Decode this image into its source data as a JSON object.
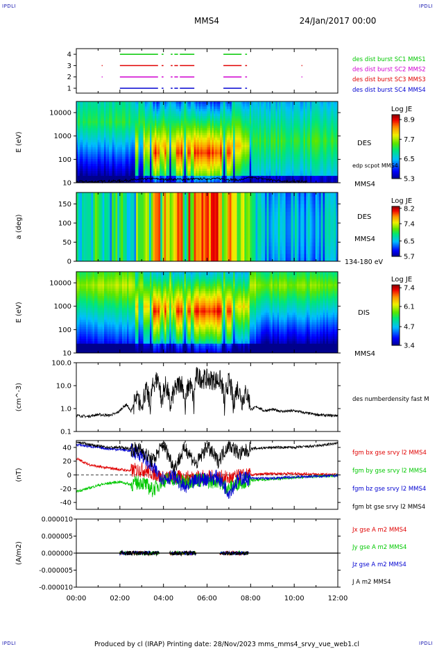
{
  "header": {
    "corner_tl": "IPDLI",
    "corner_tr": "IPDLI",
    "corner_bl": "IPDLI",
    "corner_br": "IPDLI",
    "mission": "MMS4",
    "date": "24/Jan/2017 00:00"
  },
  "footer": {
    "text": "Produced by cl (IRAP)   Printing date: 28/Nov/2023   mms_mms4_srvy_vue_web1.cl"
  },
  "colors": {
    "green": "#00c800",
    "magenta": "#d000d0",
    "red": "#e00000",
    "blue": "#0000d0",
    "black": "#000000"
  },
  "chart_data": [
    {
      "type": "scatter",
      "id": "availability",
      "x_range": [
        "00:00",
        "12:00"
      ],
      "yticks": [
        "1",
        "2",
        "3",
        "4"
      ],
      "series": [
        {
          "name": "des dist burst SC1 MMS1",
          "level": 4,
          "color": "#00c800",
          "intervals": [
            [
              "02:00",
              "03:45"
            ],
            [
              "03:55",
              "04:00"
            ],
            [
              "04:20",
              "04:25"
            ],
            [
              "04:30",
              "04:40"
            ],
            [
              "04:45",
              "05:25"
            ],
            [
              "06:45",
              "07:35"
            ],
            [
              "07:45",
              "07:50"
            ]
          ]
        },
        {
          "name": "des dist burst SC2 MMS2",
          "level": 2,
          "color": "#d000d0",
          "intervals": [
            [
              "01:10",
              "01:12"
            ],
            [
              "02:00",
              "03:45"
            ],
            [
              "03:55",
              "04:00"
            ],
            [
              "04:20",
              "04:25"
            ],
            [
              "04:30",
              "04:40"
            ],
            [
              "04:45",
              "05:25"
            ],
            [
              "06:45",
              "07:35"
            ],
            [
              "07:45",
              "07:50"
            ],
            [
              "10:20",
              "10:22"
            ]
          ]
        },
        {
          "name": "des dist burst SC3 MMS3",
          "level": 3,
          "color": "#e00000",
          "intervals": [
            [
              "01:10",
              "01:12"
            ],
            [
              "02:00",
              "03:45"
            ],
            [
              "03:55",
              "04:00"
            ],
            [
              "04:20",
              "04:25"
            ],
            [
              "04:30",
              "04:40"
            ],
            [
              "04:45",
              "05:25"
            ],
            [
              "06:45",
              "07:35"
            ],
            [
              "07:45",
              "07:50"
            ],
            [
              "10:20",
              "10:22"
            ]
          ]
        },
        {
          "name": "des dist burst SC4 MMS4",
          "level": 1,
          "color": "#0000d0",
          "intervals": [
            [
              "02:00",
              "03:45"
            ],
            [
              "03:55",
              "04:00"
            ],
            [
              "04:20",
              "04:25"
            ],
            [
              "04:30",
              "04:40"
            ],
            [
              "04:45",
              "05:25"
            ],
            [
              "06:45",
              "07:35"
            ],
            [
              "07:45",
              "07:50"
            ]
          ]
        }
      ]
    },
    {
      "type": "heatmap",
      "id": "des_energy",
      "ylabel": "E (eV)",
      "yscale": "log",
      "ylim": [
        10,
        30000
      ],
      "yticks": [
        "10",
        "100",
        "1000",
        "10000"
      ],
      "label": "DES",
      "label2": "MMS4",
      "overlay_label": "edp scpot MMS4",
      "colorbar": {
        "title": "Log JE",
        "ticks": [
          "5.3",
          "6.5",
          "7.7",
          "8.9"
        ],
        "range": [
          5.3,
          9.2
        ]
      },
      "spacecraft_potential_eV": [
        [
          0,
          11
        ],
        [
          1,
          11
        ],
        [
          2,
          12
        ],
        [
          2.5,
          13
        ],
        [
          3,
          14
        ],
        [
          3.5,
          15
        ],
        [
          4,
          14
        ],
        [
          5,
          14
        ],
        [
          6,
          15
        ],
        [
          6.5,
          15
        ],
        [
          7,
          14
        ],
        [
          7.5,
          13
        ],
        [
          8,
          17
        ],
        [
          8.5,
          15
        ],
        [
          9,
          13
        ],
        [
          9.5,
          12
        ],
        [
          10,
          11
        ],
        [
          10.5,
          11
        ]
      ]
    },
    {
      "type": "heatmap",
      "id": "des_pitch",
      "ylabel": "a (deg)",
      "ylim": [
        0,
        180
      ],
      "yticks": [
        "0",
        "50",
        "100",
        "150"
      ],
      "label": "DES",
      "label2": "MMS4",
      "energy_range": "134-180 eV",
      "colorbar": {
        "title": "Log JE",
        "ticks": [
          "5.7",
          "6.5",
          "7.4",
          "8.2"
        ],
        "range": [
          5.7,
          8.3
        ]
      }
    },
    {
      "type": "heatmap",
      "id": "dis_energy",
      "ylabel": "E (eV)",
      "yscale": "log",
      "ylim": [
        10,
        30000
      ],
      "yticks": [
        "10",
        "100",
        "1000",
        "10000"
      ],
      "label": "DIS",
      "label2": "MMS4",
      "colorbar": {
        "title": "Log JE",
        "ticks": [
          "3.4",
          "4.7",
          "6.1",
          "7.4"
        ],
        "range": [
          3.4,
          7.6
        ]
      }
    },
    {
      "type": "line",
      "id": "density",
      "ylabel": "(cm^-3)",
      "yscale": "log",
      "ylim": [
        0.1,
        100
      ],
      "yticks": [
        "0.1",
        "1.0",
        "10.0",
        "100.0"
      ],
      "series": [
        {
          "name": "des numberdensity fast M",
          "color": "#000000",
          "points": [
            [
              0,
              0.5
            ],
            [
              0.5,
              0.45
            ],
            [
              1,
              0.55
            ],
            [
              1.5,
              0.5
            ],
            [
              1.8,
              0.6
            ],
            [
              2,
              0.8
            ],
            [
              2.3,
              1.5
            ],
            [
              2.5,
              0.7
            ],
            [
              2.8,
              2.5
            ],
            [
              3,
              1.0
            ],
            [
              3.2,
              6
            ],
            [
              3.4,
              0.6
            ],
            [
              3.6,
              15
            ],
            [
              3.75,
              20
            ],
            [
              3.9,
              0.8
            ],
            [
              4.1,
              10
            ],
            [
              4.3,
              0.6
            ],
            [
              4.6,
              8
            ],
            [
              4.8,
              15
            ],
            [
              5.0,
              0.5
            ],
            [
              5.2,
              12
            ],
            [
              5.4,
              0.6
            ],
            [
              5.5,
              25
            ],
            [
              5.8,
              20
            ],
            [
              6.2,
              18
            ],
            [
              6.6,
              17
            ],
            [
              6.8,
              0.5
            ],
            [
              7.0,
              15
            ],
            [
              7.2,
              0.6
            ],
            [
              7.4,
              8
            ],
            [
              7.6,
              2
            ],
            [
              7.8,
              5
            ],
            [
              8.0,
              0.9
            ],
            [
              8.3,
              1.2
            ],
            [
              8.6,
              0.8
            ],
            [
              9,
              0.9
            ],
            [
              9.5,
              0.75
            ],
            [
              10,
              0.8
            ],
            [
              10.5,
              0.65
            ],
            [
              11,
              0.55
            ],
            [
              11.5,
              0.5
            ],
            [
              12,
              0.5
            ]
          ]
        }
      ]
    },
    {
      "type": "line",
      "id": "magnetic",
      "ylabel": "(nT)",
      "ylim": [
        -50,
        50
      ],
      "yticks": [
        "-40",
        "-20",
        "0",
        "20",
        "40"
      ],
      "series": [
        {
          "name": "fgm bx gse srvy l2 MMS4",
          "color": "#e00000",
          "points": [
            [
              0,
              24
            ],
            [
              0.5,
              16
            ],
            [
              1,
              12
            ],
            [
              1.5,
              10
            ],
            [
              2,
              8
            ],
            [
              2.5,
              6
            ],
            [
              3,
              8
            ],
            [
              3.5,
              3
            ],
            [
              4,
              -5
            ],
            [
              4.5,
              -3
            ],
            [
              5,
              -5
            ],
            [
              5.5,
              -2
            ],
            [
              6,
              -4
            ],
            [
              6.5,
              -3
            ],
            [
              7,
              -5
            ],
            [
              7.5,
              -2
            ],
            [
              8,
              0
            ],
            [
              9,
              2
            ],
            [
              10,
              2
            ],
            [
              11,
              1
            ],
            [
              12,
              0
            ]
          ]
        },
        {
          "name": "fgm by gse srvy l2 MMS4",
          "color": "#00c800",
          "points": [
            [
              0,
              -24
            ],
            [
              0.5,
              -20
            ],
            [
              1,
              -15
            ],
            [
              1.5,
              -12
            ],
            [
              2,
              -10
            ],
            [
              2.5,
              -14
            ],
            [
              3,
              -10
            ],
            [
              3.5,
              -22
            ],
            [
              4,
              -8
            ],
            [
              4.5,
              -5
            ],
            [
              5,
              -12
            ],
            [
              5.5,
              -6
            ],
            [
              6,
              -10
            ],
            [
              6.5,
              -8
            ],
            [
              7,
              -20
            ],
            [
              7.5,
              -10
            ],
            [
              8,
              -8
            ],
            [
              9,
              -6
            ],
            [
              10,
              -4
            ],
            [
              11,
              -2
            ],
            [
              12,
              -1
            ]
          ]
        },
        {
          "name": "fgm bz gse srvy l2 MMS4",
          "color": "#0000d0",
          "points": [
            [
              0,
              44
            ],
            [
              0.5,
              42
            ],
            [
              1,
              40
            ],
            [
              1.5,
              38
            ],
            [
              2,
              37
            ],
            [
              2.5,
              35
            ],
            [
              3,
              30
            ],
            [
              3.5,
              10
            ],
            [
              4,
              -5
            ],
            [
              4.5,
              -2
            ],
            [
              5,
              -20
            ],
            [
              5.5,
              -8
            ],
            [
              6,
              -5
            ],
            [
              6.5,
              -3
            ],
            [
              7,
              -25
            ],
            [
              7.5,
              -5
            ],
            [
              8,
              -5
            ],
            [
              9,
              -5
            ],
            [
              10,
              -3
            ],
            [
              11,
              -2
            ],
            [
              12,
              -1
            ]
          ]
        },
        {
          "name": "fgm bt gse srvy l2 MMS4",
          "color": "#000000",
          "points": [
            [
              0,
              48
            ],
            [
              0.5,
              45
            ],
            [
              1,
              42
            ],
            [
              1.5,
              40
            ],
            [
              2,
              40
            ],
            [
              2.5,
              38
            ],
            [
              3,
              36
            ],
            [
              3.5,
              20
            ],
            [
              4,
              45
            ],
            [
              4.5,
              10
            ],
            [
              5,
              40
            ],
            [
              5.5,
              15
            ],
            [
              6,
              42
            ],
            [
              6.5,
              20
            ],
            [
              7,
              45
            ],
            [
              7.5,
              30
            ],
            [
              8,
              38
            ],
            [
              9,
              40
            ],
            [
              10,
              40
            ],
            [
              11,
              42
            ],
            [
              12,
              46
            ]
          ]
        }
      ]
    },
    {
      "type": "line",
      "id": "current",
      "ylabel": "(A/m2)",
      "ylim": [
        -1e-05,
        1e-05
      ],
      "yticks": [
        "-0.000010",
        "-0.000005",
        "0.000000",
        "0.000005",
        "0.000010"
      ],
      "xticks": [
        "00:00",
        "02:00",
        "04:00",
        "06:00",
        "08:00",
        "10:00",
        "12:00"
      ],
      "series": [
        {
          "name": "Jx gse A m2 MMS4",
          "color": "#e00000"
        },
        {
          "name": "Jy gse A m2 MMS4",
          "color": "#00c800"
        },
        {
          "name": "Jz gse A m2 MMS4",
          "color": "#0000d0"
        },
        {
          "name": "J A m2 MMS4",
          "color": "#000000"
        }
      ]
    }
  ]
}
